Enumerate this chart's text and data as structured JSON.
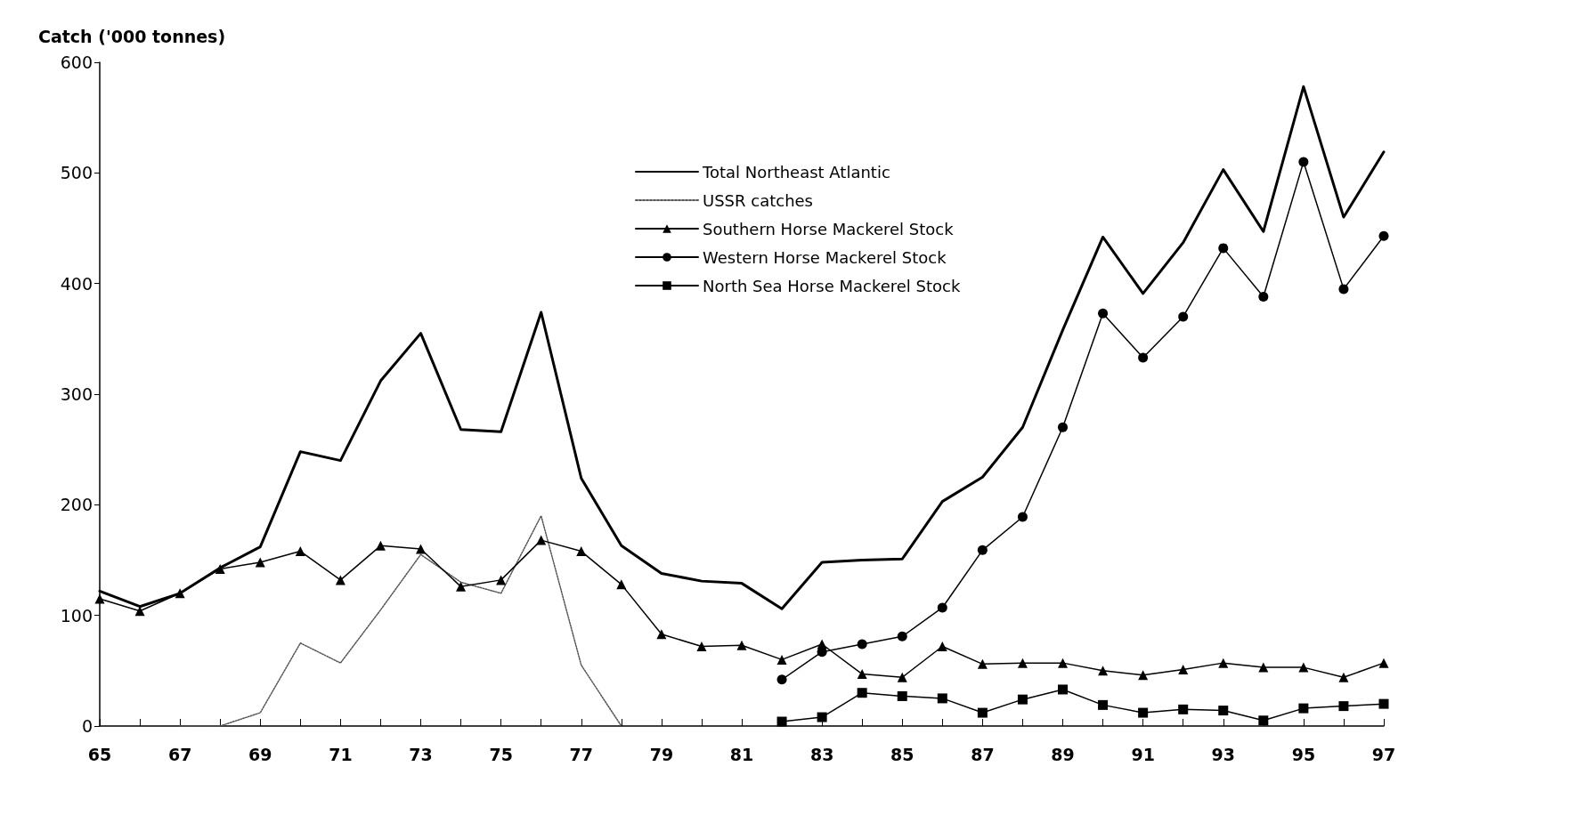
{
  "chart_data": {
    "type": "line",
    "ylabel": "Catch ('000 tonnes)",
    "categories": [
      "65",
      null,
      "67",
      null,
      "69",
      null,
      "71",
      null,
      "73",
      null,
      "75",
      null,
      "77",
      null,
      "79",
      null,
      "81",
      null,
      "83",
      null,
      "85",
      null,
      "87",
      null,
      "89",
      null,
      "91",
      null,
      "93",
      null,
      "95",
      null,
      "97"
    ],
    "ylim": [
      0,
      600
    ],
    "yticks": [
      0,
      100,
      200,
      300,
      400,
      500,
      600
    ],
    "grid": false,
    "legend": "top right",
    "series": [
      {
        "name": "Total Northeast Atlantic",
        "color": "#000000",
        "marker": "none",
        "line_style": "solid",
        "values": [
          122,
          108,
          120,
          143,
          162,
          248,
          240,
          312,
          355,
          268,
          266,
          374,
          224,
          163,
          138,
          131,
          129,
          106,
          148,
          150,
          151,
          203,
          225,
          270,
          358,
          442,
          391,
          437,
          503,
          447,
          578,
          460,
          519
        ]
      },
      {
        "name": "USSR catches",
        "color": "#555555",
        "marker": "none",
        "line_style": "dotted",
        "values": [
          null,
          null,
          0,
          0,
          12,
          75,
          57,
          105,
          155,
          130,
          120,
          190,
          55,
          0,
          null,
          null,
          null,
          null,
          null,
          null,
          null,
          null,
          null,
          null,
          null,
          null,
          null,
          null,
          null,
          null,
          null,
          null,
          null
        ]
      },
      {
        "name": "Southern Horse Mackerel Stock",
        "color": "#000000",
        "marker": "triangle",
        "line_style": "solid",
        "values": [
          115,
          104,
          120,
          142,
          148,
          158,
          132,
          163,
          160,
          126,
          132,
          168,
          158,
          128,
          83,
          72,
          73,
          60,
          74,
          47,
          44,
          72,
          56,
          57,
          57,
          50,
          46,
          51,
          57,
          53,
          53,
          44,
          57
        ]
      },
      {
        "name": "Western Horse Mackerel Stock",
        "color": "#000000",
        "marker": "circle",
        "line_style": "solid",
        "values": [
          null,
          null,
          null,
          null,
          null,
          null,
          null,
          null,
          null,
          null,
          null,
          null,
          null,
          null,
          null,
          null,
          null,
          42,
          67,
          74,
          81,
          107,
          159,
          189,
          270,
          373,
          333,
          370,
          432,
          388,
          510,
          395,
          443
        ]
      },
      {
        "name": "North Sea Horse Mackerel Stock",
        "color": "#000000",
        "marker": "square",
        "line_style": "solid",
        "values": [
          null,
          null,
          null,
          null,
          null,
          null,
          null,
          null,
          null,
          null,
          null,
          null,
          null,
          null,
          null,
          null,
          null,
          4,
          8,
          30,
          27,
          25,
          12,
          24,
          33,
          19,
          12,
          15,
          14,
          5,
          16,
          18,
          20
        ]
      }
    ]
  }
}
